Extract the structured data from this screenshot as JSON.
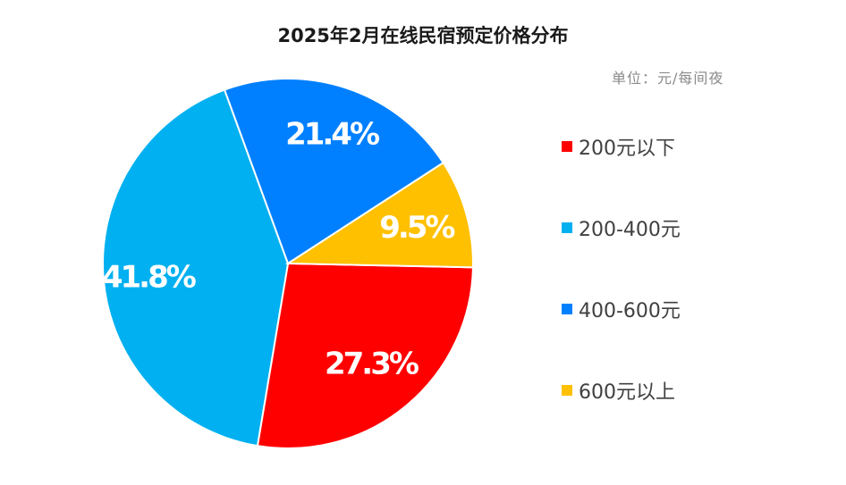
{
  "title": "2025年2月在线民宿预定价格分布",
  "unit_note": "单位：元/每间夜",
  "chart_data": {
    "type": "pie",
    "categories": [
      "200元以下",
      "200-400元",
      "400-600元",
      "600元以上"
    ],
    "values": [
      27.3,
      41.8,
      21.4,
      9.5
    ],
    "labels": [
      "27.3%",
      "41.8%",
      "21.4%",
      "9.5%"
    ],
    "colors": [
      "#ff0000",
      "#00b0f0",
      "#0080ff",
      "#ffc000"
    ],
    "legend_position": "right"
  },
  "legend": [
    {
      "label": "200元以下",
      "color": "#ff0000"
    },
    {
      "label": "200-400元",
      "color": "#00b0f0"
    },
    {
      "label": "400-600元",
      "color": "#0080ff"
    },
    {
      "label": "600元以上",
      "color": "#ffc000"
    }
  ]
}
